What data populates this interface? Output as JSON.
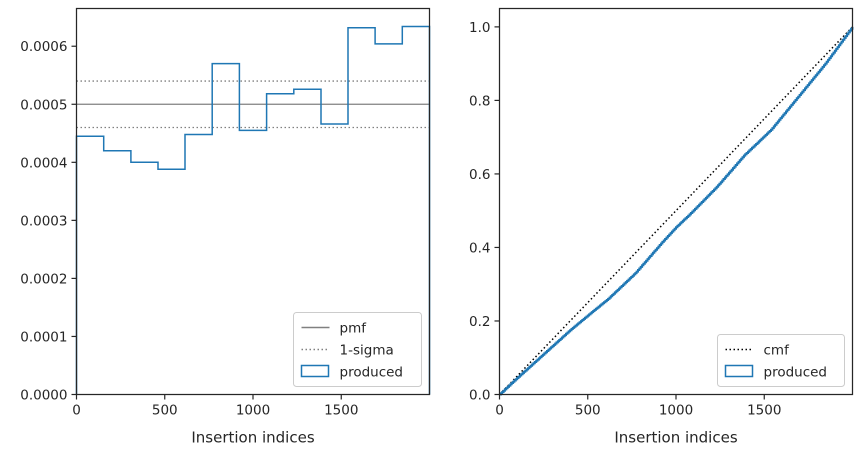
{
  "chart_data": [
    {
      "type": "line",
      "xlabel": "Insertion indices",
      "ylabel": "",
      "xlim": [
        0,
        2000
      ],
      "ylim": [
        0,
        0.000665
      ],
      "xticks": [
        0,
        500,
        1000,
        1500
      ],
      "xtick_labels": [
        "0",
        "500",
        "1000",
        "1500"
      ],
      "yticks": [
        0,
        0.0001,
        0.0002,
        0.0003,
        0.0004,
        0.0005,
        0.0006
      ],
      "ytick_labels": [
        "0.0000",
        "0.0001",
        "0.0002",
        "0.0003",
        "0.0004",
        "0.0005",
        "0.0006"
      ],
      "grid": false,
      "legend_position": "lower right",
      "reference_lines": [
        {
          "name": "pmf",
          "y": 0.0005,
          "style": "solid",
          "color": "#808080"
        },
        {
          "name": "1-sigma",
          "y": 0.00054,
          "style": "dotted",
          "color": "#808080"
        },
        {
          "name": "",
          "y": 0.00046,
          "style": "dotted",
          "color": "#808080"
        }
      ],
      "series": [
        {
          "name": "produced",
          "style": "step-histogram",
          "color": "#1f77b4",
          "bin_edges": [
            0,
            154,
            308,
            462,
            615,
            769,
            923,
            1077,
            1231,
            1385,
            1538,
            1692,
            1846,
            2000
          ],
          "values": [
            0.000445,
            0.00042,
            0.0004,
            0.000388,
            0.000448,
            0.00057,
            0.000455,
            0.000518,
            0.000526,
            0.000466,
            0.000632,
            0.000604,
            0.000634
          ]
        }
      ],
      "legend": [
        "pmf",
        "1-sigma",
        "produced"
      ]
    },
    {
      "type": "line",
      "xlabel": "Insertion indices",
      "ylabel": "",
      "xlim": [
        0,
        2000
      ],
      "ylim": [
        0,
        1.05
      ],
      "xticks": [
        0,
        500,
        1000,
        1500
      ],
      "xtick_labels": [
        "0",
        "500",
        "1000",
        "1500"
      ],
      "yticks": [
        0,
        0.2,
        0.4,
        0.6,
        0.8,
        1.0
      ],
      "ytick_labels": [
        "0.0",
        "0.2",
        "0.4",
        "0.6",
        "0.8",
        "1.0"
      ],
      "grid": false,
      "legend_position": "lower right",
      "series": [
        {
          "name": "cmf",
          "style": "dotted",
          "color": "#000000",
          "x": [
            0,
            2000
          ],
          "y": [
            0,
            1.0
          ]
        },
        {
          "name": "produced",
          "style": "step",
          "color": "#1f77b4",
          "x": [
            0,
            100,
            250,
            400,
            500,
            615,
            769,
            923,
            1000,
            1077,
            1231,
            1385,
            1538,
            1692,
            1846,
            2000
          ],
          "y": [
            0,
            0.045,
            0.11,
            0.175,
            0.215,
            0.26,
            0.33,
            0.415,
            0.455,
            0.49,
            0.565,
            0.65,
            0.72,
            0.81,
            0.9,
            1.0
          ]
        }
      ],
      "legend": [
        "cmf",
        "produced"
      ]
    }
  ]
}
